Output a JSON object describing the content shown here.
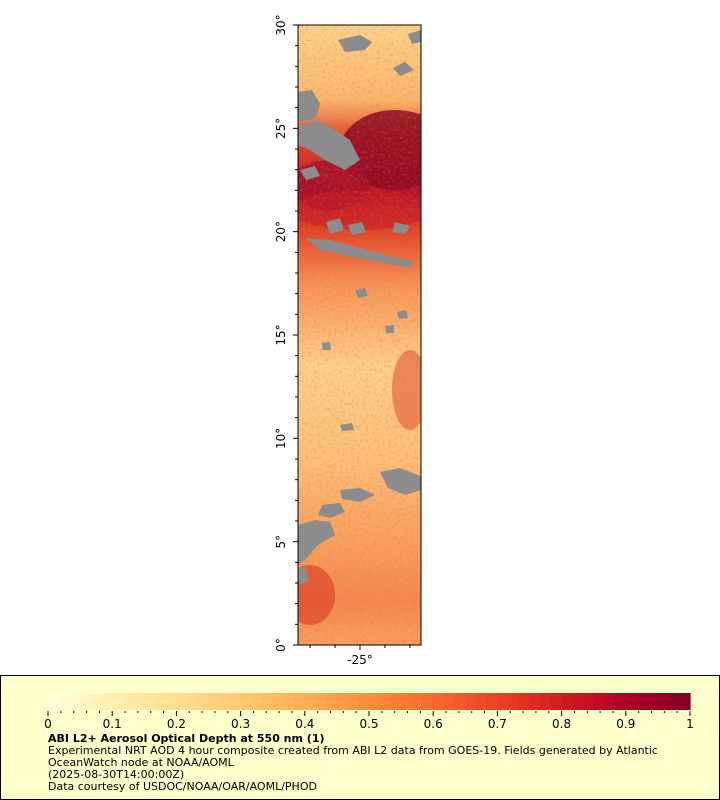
{
  "map": {
    "region_colors": {
      "land_or_cloud_mask": "#8c8c8c",
      "frame": "#000000"
    },
    "latitude_ticks": [
      "0°",
      "5°",
      "10°",
      "15°",
      "20°",
      "25°",
      "30°"
    ],
    "longitude_ticks": [
      "-25°"
    ],
    "lat_range": [
      0,
      30
    ],
    "dominant_pattern": "high aerosol plume near 20–25°N, patchy moderate values elsewhere, grey masked areas"
  },
  "legend": {
    "title": "ABI L2+ Aerosol Optical Depth at 550 nm (1)",
    "description": "Experimental NRT AOD 4 hour composite created from ABI L2 data from GOES-19. Fields generated by Atlantic OceanWatch node at NOAA/AOML",
    "time": "(2025-08-30T14:00:00Z)",
    "credit": "Data courtesy of USDOC/NOAA/OAR/AOML/PHOD",
    "colorbar": {
      "labels": [
        "0",
        "0.1",
        "0.2",
        "0.3",
        "0.4",
        "0.5",
        "0.6",
        "0.7",
        "0.8",
        "0.9",
        "1"
      ],
      "range": [
        0,
        1
      ],
      "colors": [
        "#ffffe0",
        "#fff0b0",
        "#ffe090",
        "#fec870",
        "#feae55",
        "#fd8d3c",
        "#f86a30",
        "#eb4127",
        "#d21b1f",
        "#b00026",
        "#800026"
      ]
    }
  }
}
